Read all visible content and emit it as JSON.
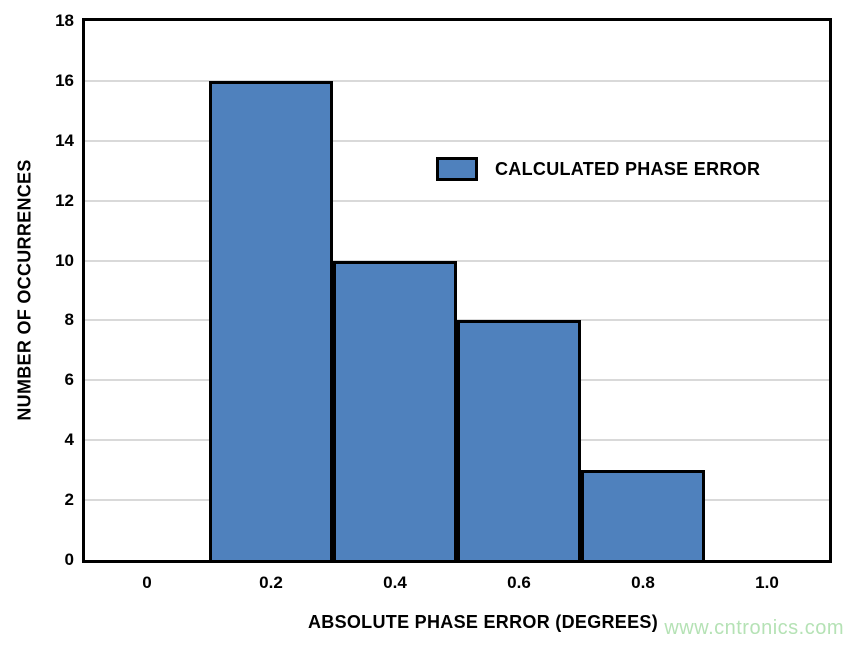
{
  "page": {
    "background": "#ffffff",
    "watermark": {
      "text": "www.cntronics.com",
      "color": "#b5e2b5"
    }
  },
  "chart_data": {
    "type": "bar",
    "title": "",
    "xlabel": "ABSOLUTE PHASE ERROR (DEGREES)",
    "ylabel": "NUMBER OF OCCURRENCES",
    "xlim": [
      -0.1,
      1.1
    ],
    "ylim": [
      0,
      18
    ],
    "x_tick_values": [
      0,
      0.2,
      0.4,
      0.6,
      0.8,
      1.0
    ],
    "x_tick_labels": [
      "0",
      "0.2",
      "0.4",
      "0.6",
      "0.8",
      "1.0"
    ],
    "y_tick_values": [
      0,
      2,
      4,
      6,
      8,
      10,
      12,
      14,
      16,
      18
    ],
    "y_tick_labels": [
      "0",
      "2",
      "4",
      "6",
      "8",
      "10",
      "12",
      "14",
      "16",
      "18"
    ],
    "grid": "horizontal",
    "grid_color": "#d9d9d9",
    "bar_color": "#4f81bd",
    "bar_border_color": "#000000",
    "bins": [
      {
        "x_start": 0.1,
        "x_end": 0.3,
        "count": 16
      },
      {
        "x_start": 0.3,
        "x_end": 0.5,
        "count": 10
      },
      {
        "x_start": 0.5,
        "x_end": 0.7,
        "count": 8
      },
      {
        "x_start": 0.7,
        "x_end": 0.9,
        "count": 3
      }
    ],
    "legend": {
      "label": "CALCULATED PHASE ERROR",
      "position": "inside-upper-middle"
    }
  }
}
